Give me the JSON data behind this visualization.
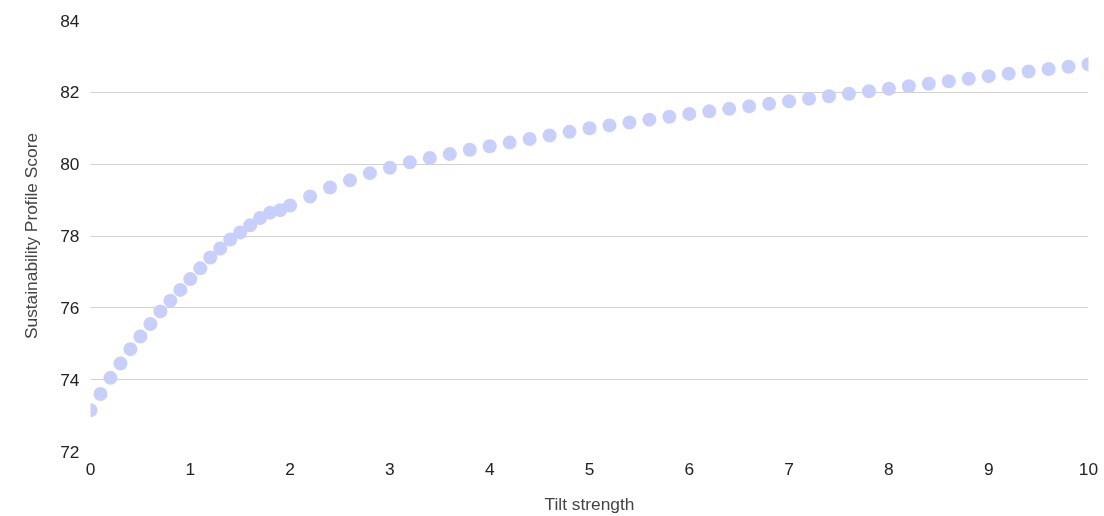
{
  "chart_data": {
    "type": "scatter",
    "xlabel": "Tilt strength",
    "ylabel": "Sustainability Profile Score",
    "x": [
      0,
      0.1,
      0.2,
      0.3,
      0.4,
      0.5,
      0.6,
      0.7,
      0.8,
      0.9,
      1.0,
      1.1,
      1.2,
      1.3,
      1.4,
      1.5,
      1.6,
      1.7,
      1.8,
      1.9,
      2.0,
      2.2,
      2.4,
      2.6,
      2.8,
      3.0,
      3.2,
      3.4,
      3.6,
      3.8,
      4.0,
      4.2,
      4.4,
      4.6,
      4.8,
      5.0,
      5.2,
      5.4,
      5.6,
      5.8,
      6.0,
      6.2,
      6.4,
      6.6,
      6.8,
      7.0,
      7.2,
      7.4,
      7.6,
      7.8,
      8.0,
      8.2,
      8.4,
      8.6,
      8.8,
      9.0,
      9.2,
      9.4,
      9.6,
      9.8,
      10.0
    ],
    "series": [
      {
        "color": "#c9cffb",
        "values": [
          73.15,
          73.6,
          74.05,
          74.45,
          74.85,
          75.2,
          75.55,
          75.9,
          76.2,
          76.5,
          76.8,
          77.1,
          77.4,
          77.65,
          77.9,
          78.1,
          78.3,
          78.5,
          78.65,
          78.72,
          78.85,
          79.1,
          79.35,
          79.55,
          79.75,
          79.9,
          80.05,
          80.17,
          80.28,
          80.4,
          80.5,
          80.6,
          80.7,
          80.8,
          80.9,
          81.0,
          81.08,
          81.16,
          81.24,
          81.32,
          81.4,
          81.47,
          81.54,
          81.61,
          81.68,
          81.75,
          81.82,
          81.89,
          81.96,
          82.03,
          82.1,
          82.17,
          82.24,
          82.31,
          82.38,
          82.45,
          82.52,
          82.58,
          82.65,
          82.71,
          82.78
        ]
      }
    ],
    "marker": "circle",
    "grid": "y",
    "xlim": [
      0,
      10
    ],
    "xticks": [
      0,
      1,
      2,
      3,
      4,
      5,
      6,
      7,
      8,
      9,
      10
    ],
    "ylim": [
      72,
      84
    ],
    "yticks": [
      72,
      74,
      76,
      78,
      80,
      82,
      84
    ]
  }
}
